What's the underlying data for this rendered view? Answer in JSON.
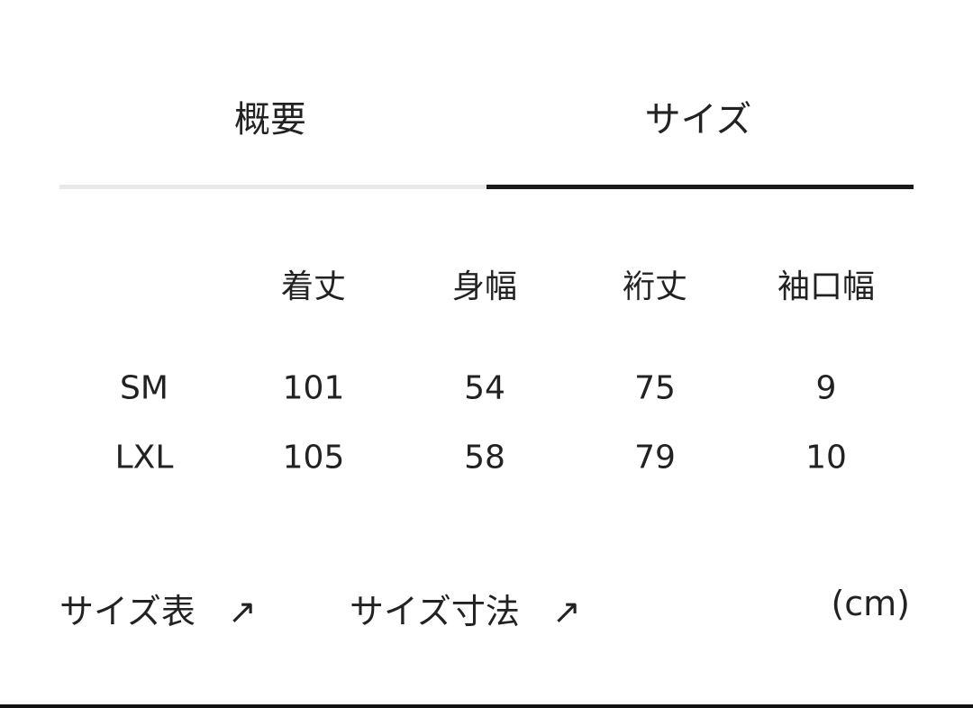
{
  "tabs": [
    {
      "label": "概要",
      "active": false
    },
    {
      "label": "サイズ",
      "active": true
    }
  ],
  "colors": {
    "active_underline": "#1a1a1a",
    "inactive_underline": "#e8e8e8",
    "text": "#222222"
  },
  "table": {
    "headers": [
      "",
      "着丈",
      "身幅",
      "裄丈",
      "袖口幅"
    ],
    "rows": [
      [
        "SM",
        "101",
        "54",
        "75",
        "9"
      ],
      [
        "LXL",
        "105",
        "58",
        "79",
        "10"
      ]
    ]
  },
  "links": [
    {
      "label": "サイズ表",
      "icon": "arrow-up-right-icon",
      "glyph": "↗"
    },
    {
      "label": "サイズ寸法",
      "icon": "arrow-up-right-icon",
      "glyph": "↗"
    }
  ],
  "unit": "(cm)"
}
